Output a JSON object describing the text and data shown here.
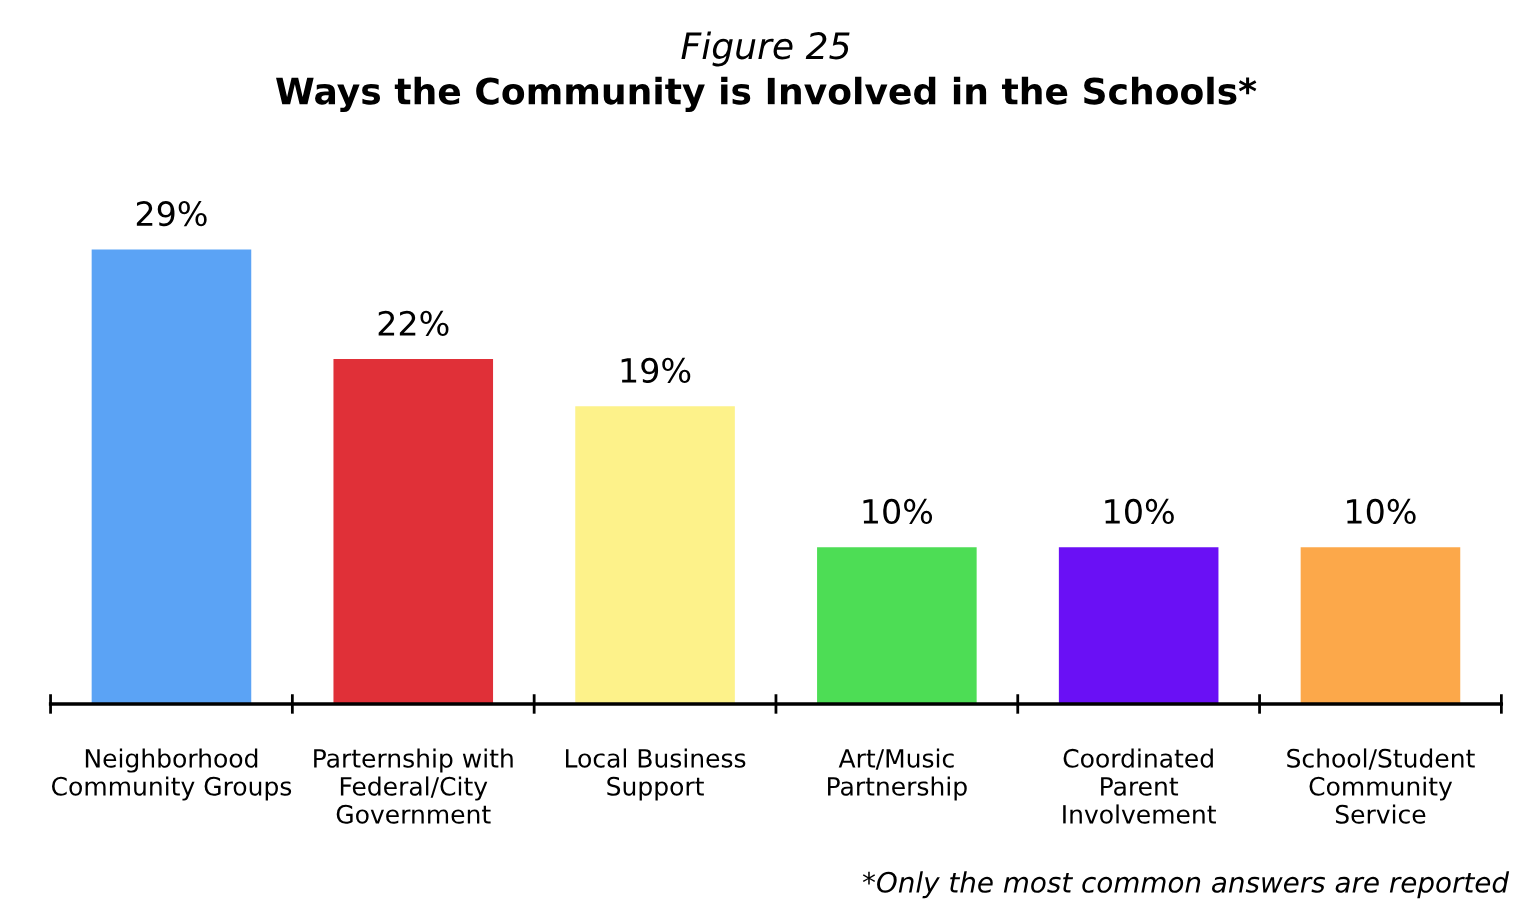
{
  "chart_data": {
    "type": "bar",
    "title": "Figure 25",
    "subtitle": "Ways the Community is Involved in the Schools*",
    "categories": [
      "Neighborhood Community Groups",
      "Parternship with Federal/City Government",
      "Local Business Support",
      "Art/Music Partnership",
      "Coordinated Parent Involvement",
      "School/Student Community Service"
    ],
    "values": [
      29,
      22,
      19,
      10,
      10,
      10
    ],
    "colors": [
      "#5ba3f5",
      "#e03038",
      "#fdf28a",
      "#4ddd55",
      "#6a10f5",
      "#fca84a"
    ],
    "value_labels": [
      "29%",
      "22%",
      "19%",
      "10%",
      "10%",
      "10%"
    ],
    "annotations": [
      "*Only the most common answers are reported"
    ],
    "grid": false,
    "legend": false
  }
}
